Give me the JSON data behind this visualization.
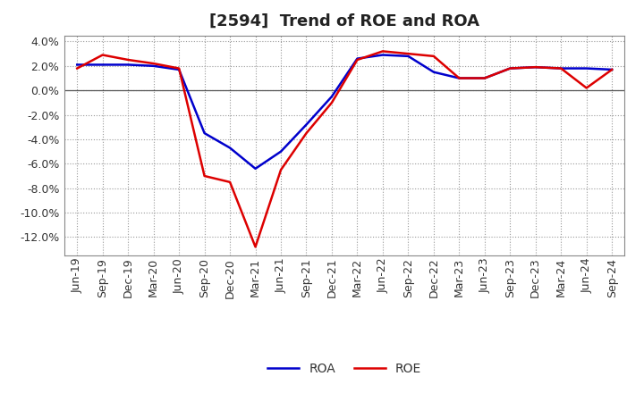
{
  "title": "[2594]  Trend of ROE and ROA",
  "x_labels": [
    "Jun-19",
    "Sep-19",
    "Dec-19",
    "Mar-20",
    "Jun-20",
    "Sep-20",
    "Dec-20",
    "Mar-21",
    "Jun-21",
    "Sep-21",
    "Dec-21",
    "Mar-22",
    "Jun-22",
    "Sep-22",
    "Dec-22",
    "Mar-23",
    "Jun-23",
    "Sep-23",
    "Dec-23",
    "Mar-24",
    "Jun-24",
    "Sep-24"
  ],
  "roe": [
    1.8,
    2.9,
    2.5,
    2.2,
    1.8,
    -7.0,
    -7.5,
    -12.8,
    -6.5,
    -3.5,
    -1.0,
    2.5,
    3.2,
    3.0,
    2.8,
    1.0,
    1.0,
    1.8,
    1.9,
    1.8,
    0.2,
    1.7
  ],
  "roa": [
    2.1,
    2.1,
    2.1,
    2.0,
    1.7,
    -3.5,
    -4.7,
    -6.4,
    -5.0,
    -2.8,
    -0.5,
    2.6,
    2.9,
    2.8,
    1.5,
    1.0,
    1.0,
    1.8,
    1.9,
    1.8,
    1.8,
    1.7
  ],
  "roe_color": "#dd0000",
  "roa_color": "#0000cc",
  "ylim": [
    -13.5,
    4.5
  ],
  "yticks": [
    4.0,
    2.0,
    0.0,
    -2.0,
    -4.0,
    -6.0,
    -8.0,
    -10.0,
    -12.0
  ],
  "background_color": "#ffffff",
  "plot_bg_color": "#ffffff",
  "grid_color": "#999999",
  "title_fontsize": 13,
  "tick_fontsize": 9,
  "legend_labels": [
    "ROE",
    "ROA"
  ]
}
